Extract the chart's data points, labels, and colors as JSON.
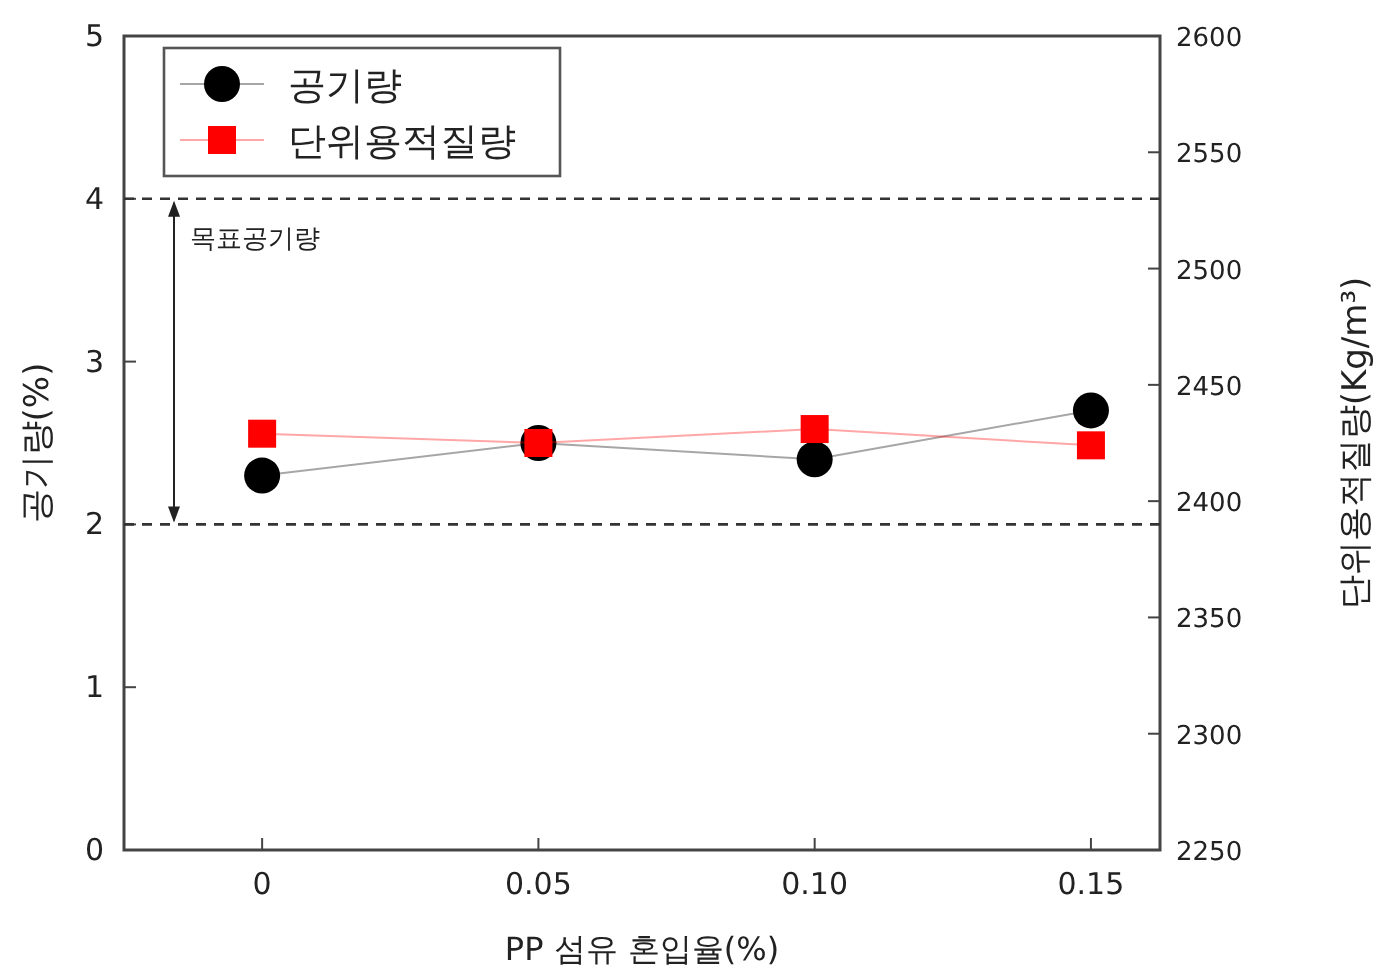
{
  "chart_data": {
    "type": "line",
    "xlabel": "PP 섬유 혼입율(%)",
    "ylabel": "공기량(%)",
    "y2label": "단위용적질량(Kg/m³)",
    "x": [
      0,
      0.05,
      0.1,
      0.15
    ],
    "xlim": [
      -0.025,
      0.1625
    ],
    "xticks": [
      {
        "value": 0,
        "label": "0"
      },
      0.05,
      {
        "value": 0.1,
        "label": "0.10"
      },
      0.15
    ],
    "ylim": [
      0,
      5
    ],
    "yticks": [
      0,
      1,
      2,
      3,
      4,
      5
    ],
    "y2lim": [
      2250,
      2600
    ],
    "y2ticks": [
      2250,
      2300,
      2350,
      2400,
      2450,
      2500,
      2550,
      2600
    ],
    "series": [
      {
        "name": "공기량",
        "color": "#000000",
        "marker": "circle",
        "values": [
          2.3,
          2.5,
          2.4,
          2.7
        ]
      },
      {
        "name": "단위용적질량",
        "color": "#ff0000",
        "marker": "square",
        "axis": "y2",
        "values": [
          2429,
          2425,
          2431,
          2424
        ]
      }
    ],
    "ref_lines": [
      {
        "axis": "y",
        "value": 4,
        "line_style": "dashed",
        "color": "#333333"
      },
      {
        "axis": "y",
        "value": 2,
        "line_style": "dashed",
        "color": "#333333"
      }
    ],
    "annotations": [
      "목표공기량"
    ],
    "legend": "top left",
    "grid": false
  }
}
